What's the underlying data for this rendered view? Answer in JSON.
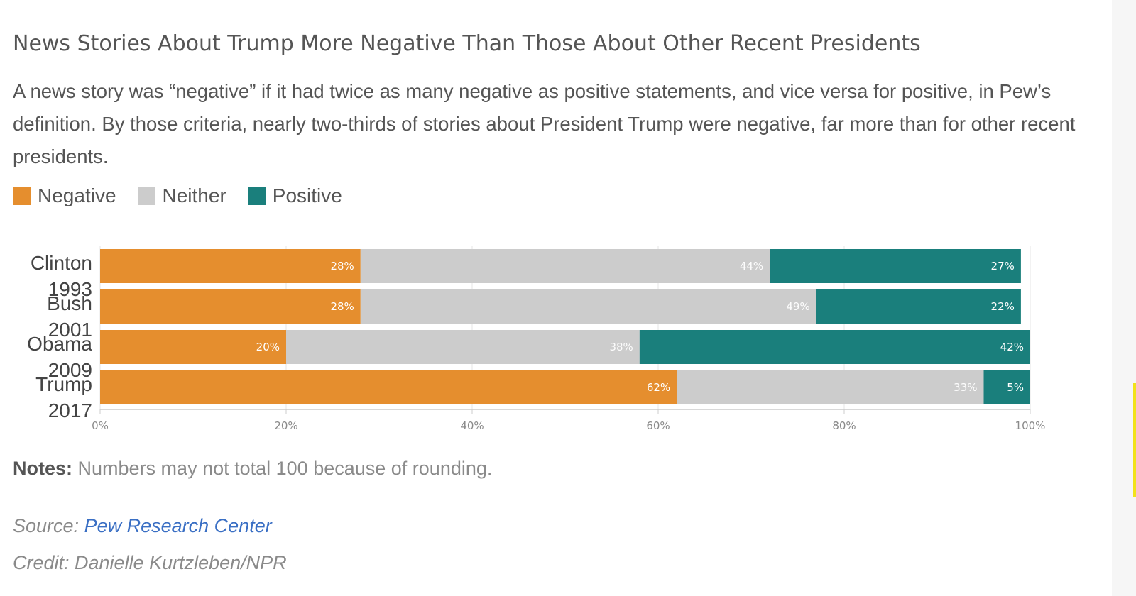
{
  "title": "News Stories About Trump More Negative Than Those About Other Recent Presidents",
  "subtitle": "A news story was “negative” if it had twice as many negative as positive statements, and vice versa for positive, in Pew’s definition. By those criteria, nearly two-thirds of stories about President Trump were negative, far more than for other recent presidents.",
  "notes": {
    "label": "Notes:",
    "text": "Numbers may not total 100 because of rounding."
  },
  "source": {
    "label": "Source:",
    "link": "Pew Research Center"
  },
  "credit": "Credit: Danielle Kurtzleben/NPR",
  "colors": {
    "negative": "#e58e2e",
    "neither": "#cccccc",
    "positive": "#1a7f7c"
  },
  "chart_data": {
    "type": "bar",
    "orientation": "horizontal",
    "stacked": true,
    "categories": [
      {
        "name": "Clinton",
        "year": "1993"
      },
      {
        "name": "Bush",
        "year": "2001"
      },
      {
        "name": "Obama",
        "year": "2009"
      },
      {
        "name": "Trump",
        "year": "2017"
      }
    ],
    "series": [
      {
        "name": "Negative",
        "color": "#e58e2e",
        "values": [
          28,
          28,
          20,
          62
        ]
      },
      {
        "name": "Neither",
        "color": "#cccccc",
        "values": [
          44,
          49,
          38,
          33
        ]
      },
      {
        "name": "Positive",
        "color": "#1a7f7c",
        "values": [
          27,
          22,
          42,
          5
        ]
      }
    ],
    "xlim": [
      0,
      100
    ],
    "xticks": [
      "0%",
      "20%",
      "40%",
      "60%",
      "80%",
      "100%"
    ],
    "legend": "top-left",
    "grid": true
  }
}
